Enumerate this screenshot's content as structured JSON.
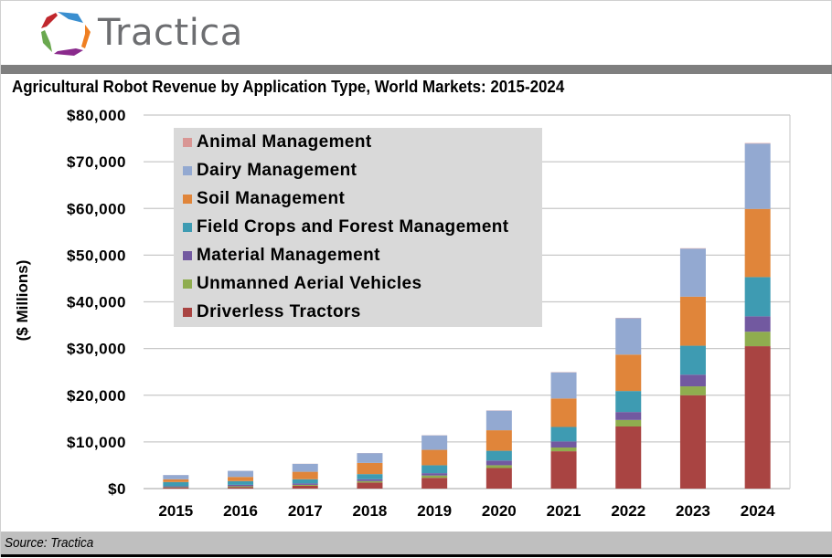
{
  "header": {
    "brand": "Tractica",
    "logo_colors": [
      "#3a8fd0",
      "#ef7f22",
      "#8a2a8c",
      "#6aa84f",
      "#c0272d"
    ]
  },
  "footer": {
    "source": "Source: Tractica"
  },
  "chart_data": {
    "type": "bar",
    "stacked": true,
    "title": "Agricultural Robot Revenue by Application Type, World Markets: 2015-2024",
    "xlabel": "",
    "ylabel": "($ Millions)",
    "ylim": [
      0,
      80000
    ],
    "yticks": [
      0,
      10000,
      20000,
      30000,
      40000,
      50000,
      60000,
      70000,
      80000
    ],
    "ytick_labels": [
      "$0",
      "$10,000",
      "$20,000",
      "$30,000",
      "$40,000",
      "$50,000",
      "$60,000",
      "$70,000",
      "$80,000"
    ],
    "grid": true,
    "legend_position": "top-left",
    "categories": [
      "2015",
      "2016",
      "2017",
      "2018",
      "2019",
      "2020",
      "2021",
      "2022",
      "2023",
      "2024"
    ],
    "series": [
      {
        "name": "Driverless Tractors",
        "color": "#a94442",
        "values": [
          200,
          300,
          600,
          1300,
          2300,
          4400,
          8000,
          13300,
          20000,
          30500
        ]
      },
      {
        "name": "Unmanned Aerial Vehicles",
        "color": "#8fad4f",
        "values": [
          100,
          200,
          200,
          300,
          500,
          600,
          800,
          1400,
          1900,
          3100
        ]
      },
      {
        "name": "Material Management",
        "color": "#7259a0",
        "values": [
          200,
          300,
          300,
          400,
          500,
          1000,
          1300,
          1700,
          2500,
          3300
        ]
      },
      {
        "name": "Field Crops and Forest Management",
        "color": "#3e9bb2",
        "values": [
          900,
          800,
          900,
          1100,
          1700,
          2100,
          3100,
          4500,
          6200,
          8400
        ]
      },
      {
        "name": "Soil Management",
        "color": "#e0853a",
        "values": [
          600,
          900,
          1600,
          2400,
          3300,
          4400,
          6100,
          7800,
          10500,
          14600
        ]
      },
      {
        "name": "Dairy Management",
        "color": "#93a9d1",
        "values": [
          900,
          1300,
          1700,
          2100,
          3100,
          4200,
          5600,
          7800,
          10300,
          14000
        ]
      },
      {
        "name": "Animal Management",
        "color": "#d99694",
        "values": [
          10,
          10,
          20,
          20,
          30,
          40,
          50,
          60,
          80,
          100
        ]
      }
    ],
    "legend_order": [
      "Animal Management",
      "Dairy Management",
      "Soil Management",
      "Field Crops and Forest Management",
      "Material Management",
      "Unmanned Aerial Vehicles",
      "Driverless Tractors"
    ]
  }
}
